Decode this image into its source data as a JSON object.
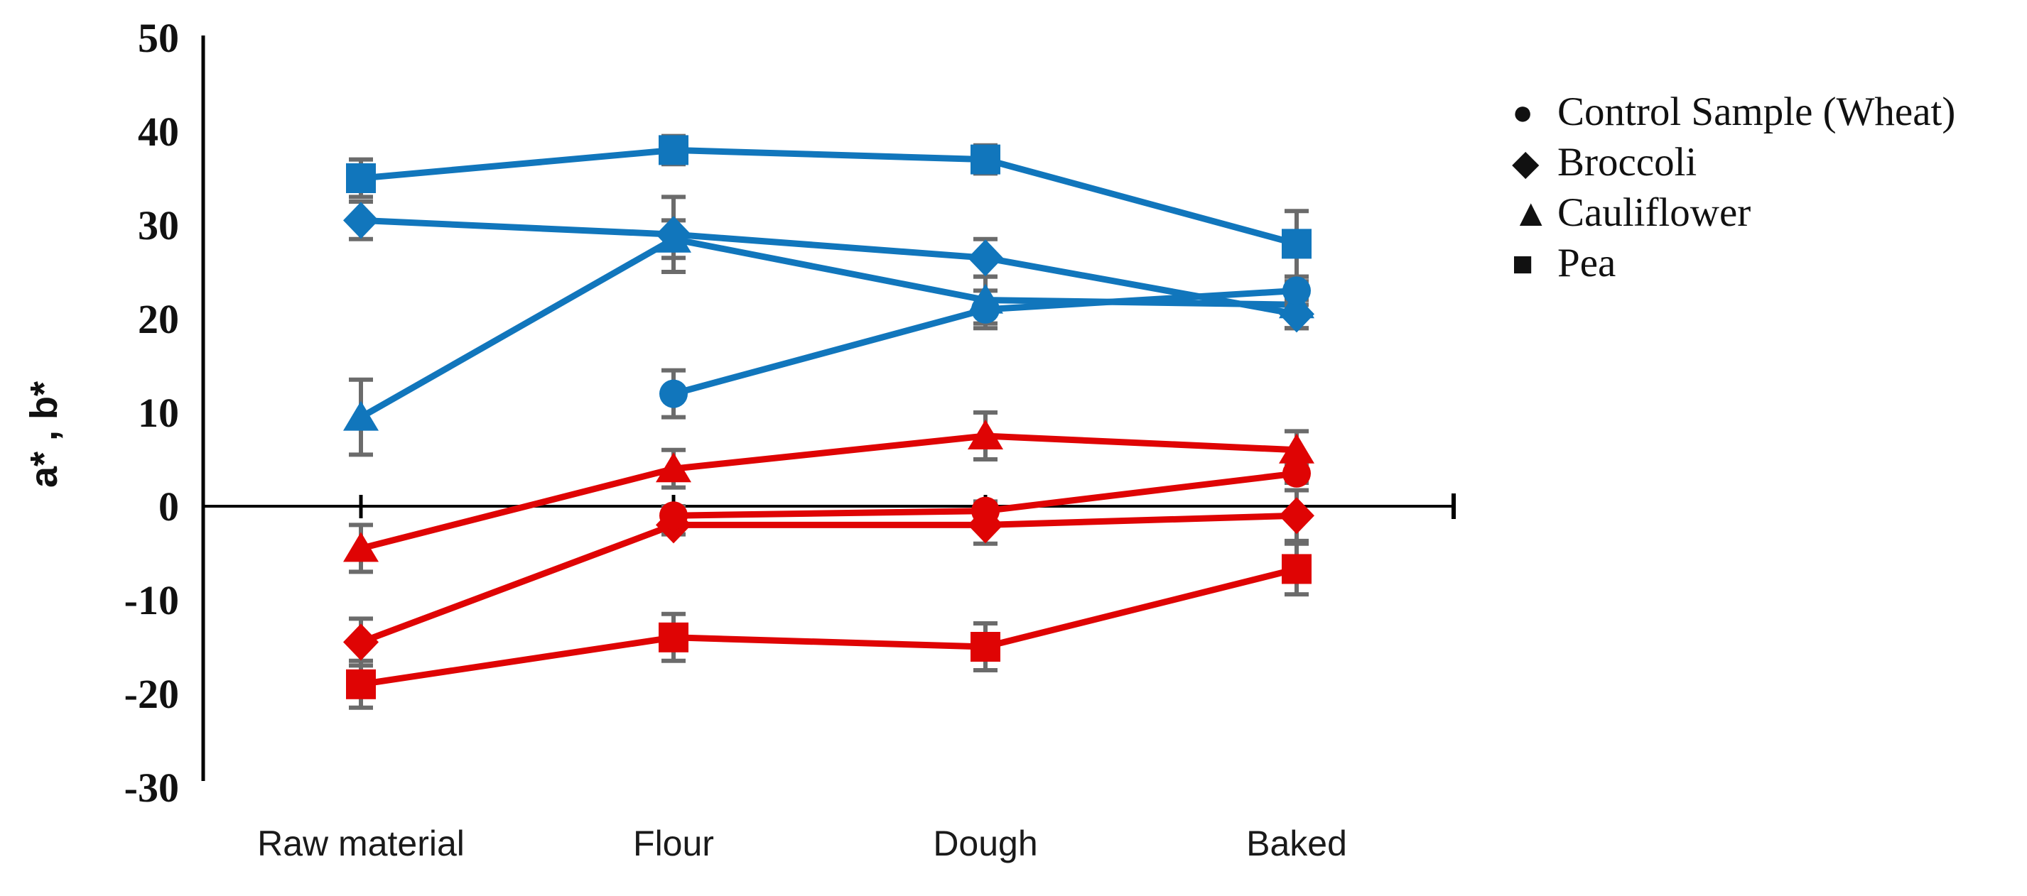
{
  "page": {
    "background": "#ffffff"
  },
  "y_axis": {
    "title": "a* , b*",
    "tick_labels": [
      "50",
      "40",
      "30",
      "20",
      "10",
      "0",
      "-10",
      "-20",
      "-30"
    ]
  },
  "x_axis": {
    "categories": [
      "Raw material",
      "Flour",
      "Dough",
      "Baked"
    ]
  },
  "legend": {
    "items": [
      {
        "label": "Control Sample (Wheat)",
        "marker": "circle"
      },
      {
        "label": "Broccoli",
        "marker": "diamond"
      },
      {
        "label": "Cauliflower",
        "marker": "triangle"
      },
      {
        "label": "Pea",
        "marker": "square"
      }
    ],
    "marker_color": "#111111"
  },
  "colors": {
    "b_star_series": "#1176BC",
    "a_star_series": "#DF0404",
    "error_bars": "#6B6B6B",
    "axis": "#000000",
    "text": "#111111"
  },
  "chart_data": {
    "type": "line",
    "title": "",
    "categories": [
      "Raw material",
      "Flour",
      "Dough",
      "Baked"
    ],
    "xlabel": "",
    "ylabel": "a* , b*",
    "ylim": [
      -30,
      50
    ],
    "y_ticks": [
      50,
      40,
      30,
      20,
      10,
      0,
      -10,
      -20,
      -30
    ],
    "grid": false,
    "legend_position": "top-right",
    "series": [
      {
        "name": "Control Sample (Wheat) b*",
        "measure": "b*",
        "marker": "circle",
        "color": "#1176BC",
        "values": [
          null,
          12,
          21,
          23
        ],
        "errors": [
          null,
          2.5,
          2,
          1.5
        ]
      },
      {
        "name": "Broccoli b*",
        "measure": "b*",
        "marker": "diamond",
        "color": "#1176BC",
        "values": [
          30.5,
          29,
          26.5,
          20.5
        ],
        "errors": [
          2,
          4,
          2,
          1.5
        ]
      },
      {
        "name": "Cauliflower b*",
        "measure": "b*",
        "marker": "triangle",
        "color": "#1176BC",
        "values": [
          9.5,
          28.5,
          22,
          21.5
        ],
        "errors": [
          4,
          2,
          2.5,
          2.5
        ]
      },
      {
        "name": "Pea b*",
        "measure": "b*",
        "marker": "square",
        "color": "#1176BC",
        "values": [
          35,
          38,
          37,
          28
        ],
        "errors": [
          2,
          1.5,
          1.5,
          3.5
        ]
      },
      {
        "name": "Control Sample (Wheat) a*",
        "measure": "a*",
        "marker": "circle",
        "color": "#DF0404",
        "values": [
          null,
          -1,
          -0.5,
          3.5
        ],
        "errors": [
          null,
          1,
          1,
          1
        ]
      },
      {
        "name": "Broccoli a*",
        "measure": "a*",
        "marker": "diamond",
        "color": "#DF0404",
        "values": [
          -14.5,
          -2,
          -2,
          -1
        ],
        "errors": [
          2.5,
          1,
          2,
          2.7
        ]
      },
      {
        "name": "Cauliflower a*",
        "measure": "a*",
        "marker": "triangle",
        "color": "#DF0404",
        "values": [
          -4.5,
          4,
          7.5,
          6
        ],
        "errors": [
          2.5,
          2,
          2.5,
          2
        ]
      },
      {
        "name": "Pea a*",
        "measure": "a*",
        "marker": "square",
        "color": "#DF0404",
        "values": [
          -19,
          -14,
          -15,
          -6.7
        ],
        "errors": [
          2.5,
          2.5,
          2.5,
          2.7
        ]
      }
    ]
  }
}
